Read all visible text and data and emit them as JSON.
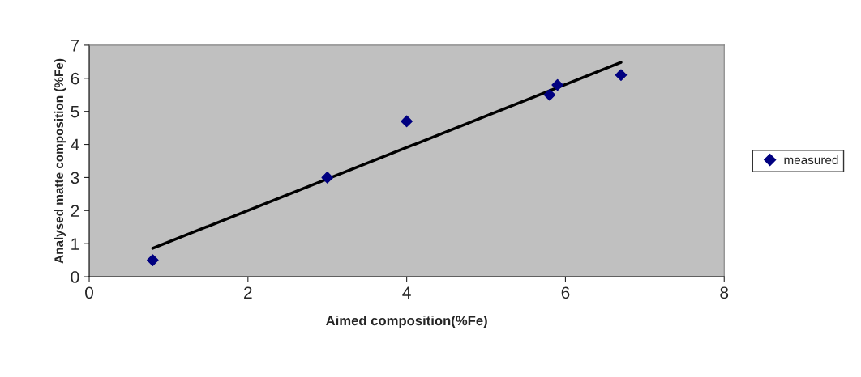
{
  "chart_data": {
    "type": "scatter",
    "xlabel": "Aimed composition(%Fe)",
    "ylabel": "Analysed matte composition (%Fe)",
    "xlim": [
      0,
      8
    ],
    "xticks": [
      0,
      2,
      4,
      6,
      8
    ],
    "ylim": [
      0,
      7
    ],
    "yticks": [
      0,
      1,
      2,
      3,
      4,
      5,
      6,
      7
    ],
    "grid": false,
    "legend": "right",
    "marker": "diamond",
    "series": [
      {
        "name": "measured",
        "color": "#000080",
        "x": [
          0.8,
          3.0,
          4.0,
          5.8,
          5.9,
          6.7
        ],
        "values": [
          0.5,
          3.0,
          4.7,
          5.5,
          5.8,
          6.1
        ]
      },
      {
        "type": "line",
        "marker": "none",
        "color": "#000000",
        "x": [
          0.8,
          6.7
        ],
        "values": [
          0.86,
          6.48
        ]
      }
    ]
  }
}
